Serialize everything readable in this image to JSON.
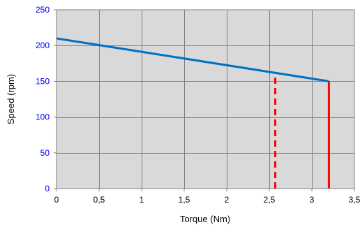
{
  "chart_data": {
    "type": "line",
    "title": "",
    "xlabel": "Torque (Nm)",
    "ylabel": "Speed (rpm)",
    "xlim": [
      0,
      3.5
    ],
    "ylim": [
      0,
      250
    ],
    "x_ticks": [
      0,
      0.5,
      1,
      1.5,
      2,
      2.5,
      3,
      3.5
    ],
    "x_tick_labels": [
      "0",
      "0,5",
      "1",
      "1,5",
      "2",
      "2,5",
      "3",
      "3,5"
    ],
    "y_ticks": [
      0,
      50,
      100,
      150,
      200,
      250
    ],
    "y_tick_labels": [
      "0",
      "50",
      "100",
      "150",
      "200",
      "250"
    ],
    "grid": true,
    "legend": "none",
    "plot_background": "#d9d9d9",
    "series": [
      {
        "x": [
          0,
          3.2
        ],
        "y": [
          210,
          150
        ],
        "color": "#0070c0",
        "style": "solid"
      }
    ],
    "vertical_lines": [
      {
        "x": 2.57,
        "y": [
          0,
          155
        ],
        "color": "#ff0000",
        "style": "dashed"
      },
      {
        "x": 3.2,
        "y": [
          0,
          150
        ],
        "color": "#ff0000",
        "style": "solid"
      }
    ]
  }
}
